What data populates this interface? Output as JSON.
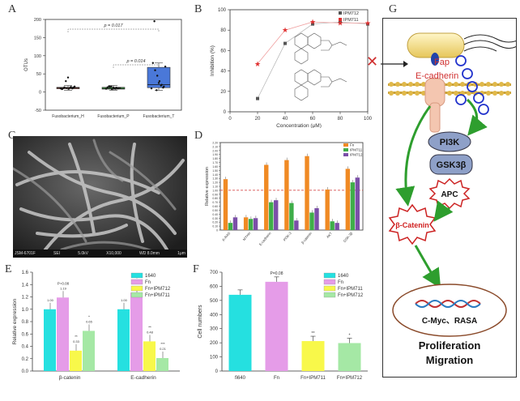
{
  "panels": {
    "a": {
      "letter": "A"
    },
    "b": {
      "letter": "B"
    },
    "c": {
      "letter": "C"
    },
    "d": {
      "letter": "D"
    },
    "e": {
      "letter": "E"
    },
    "f": {
      "letter": "F"
    },
    "g": {
      "letter": "G"
    }
  },
  "sem_info": [
    "JSM-6701F",
    "SEI",
    "5.0kV",
    "X10,000",
    "WD 8.0mm",
    "1μm"
  ],
  "pathway": {
    "fap": "Fap",
    "ecadherin": "E-cadherin",
    "pi3k": "PI3K",
    "gsk3b": "GSK3β",
    "apc": "APC",
    "bcatenin": "β-Catenin",
    "targets": "C-Myc、RASA",
    "outcome_line1": "Proliferation",
    "outcome_line2": "Migration",
    "block_mark": "✕"
  },
  "chart_data": [
    {
      "id": "a",
      "type": "box",
      "ylabel": "OTUs",
      "ylim": [
        -50,
        200
      ],
      "yticks": [
        -50,
        0,
        50,
        100,
        150,
        200
      ],
      "categories": [
        "Fusobacterium_H",
        "Fusobacterium_P",
        "Fusobacterium_T"
      ],
      "boxes": [
        {
          "min": 5,
          "q1": 9,
          "median": 11,
          "q3": 13,
          "max": 18,
          "color": "#e06a5a"
        },
        {
          "min": 5,
          "q1": 8,
          "median": 10,
          "q3": 13,
          "max": 18,
          "color": "#4caf50"
        },
        {
          "min": 5,
          "q1": 12,
          "median": 20,
          "q3": 68,
          "max": 80,
          "color": "#4a78d8"
        }
      ],
      "points": [
        [
          10,
          12,
          14,
          9,
          11,
          13,
          8,
          15,
          10,
          12,
          40,
          30,
          11,
          9,
          13
        ],
        [
          9,
          11,
          12,
          10,
          8,
          14,
          13,
          11,
          10,
          9,
          12,
          15,
          16
        ],
        [
          10,
          15,
          20,
          30,
          45,
          60,
          80,
          70,
          12,
          18,
          25,
          5,
          195
        ]
      ],
      "annotations": [
        "p = 0.017",
        "p = 0.014"
      ]
    },
    {
      "id": "b",
      "type": "line",
      "xlabel": "Concentration (μM)",
      "ylabel": "Inhibition (%)",
      "xlim": [
        0,
        100
      ],
      "ylim": [
        0,
        100
      ],
      "xticks": [
        0,
        20,
        40,
        60,
        80,
        100
      ],
      "yticks": [
        0,
        20,
        40,
        60,
        80,
        100
      ],
      "series": [
        {
          "name": "IPM712",
          "x": [
            20,
            40,
            60,
            80,
            100
          ],
          "y": [
            13,
            67,
            86,
            88,
            86
          ],
          "color": "#555555"
        },
        {
          "name": "IPM711",
          "x": [
            20,
            40,
            60,
            80,
            100
          ],
          "y": [
            47,
            80,
            88,
            87,
            87
          ],
          "color": "#e03030"
        }
      ]
    },
    {
      "id": "d",
      "type": "bar",
      "ylabel": "Relative expression",
      "ylim": [
        0,
        2.2
      ],
      "yticks": [
        "0",
        "0.10",
        "0.20",
        "0.30",
        "0.40",
        "0.50",
        "0.60",
        "0.70",
        "0.80",
        "0.90",
        "1.00",
        "1.10",
        "1.20",
        "1.30",
        "1.40",
        "1.50",
        "1.60",
        "1.70",
        "1.80",
        "1.90",
        "2.00",
        "2.10",
        "2.20"
      ],
      "categories": [
        "K-RAS",
        "MYHH",
        "E-cadherin",
        "PI3K-3",
        "β-catenin",
        "AKT",
        "GSK-3β"
      ],
      "series": [
        {
          "name": "Fn",
          "values": [
            1.28,
            0.32,
            1.64,
            1.76,
            1.86,
            1.02,
            1.54
          ],
          "color": "#f08a24"
        },
        {
          "name": "IPM711",
          "values": [
            0.18,
            0.28,
            0.7,
            0.68,
            0.44,
            0.22,
            1.2
          ],
          "color": "#3fae49"
        },
        {
          "name": "IPM712",
          "values": [
            0.32,
            0.3,
            0.75,
            0.24,
            0.55,
            0.18,
            1.32
          ],
          "color": "#7b4fa8"
        }
      ],
      "reference_line": 1.0
    },
    {
      "id": "e",
      "type": "bar",
      "ylabel": "Relative expression",
      "ylim": [
        0,
        1.6
      ],
      "yticks": [
        "0.0",
        "0.2",
        "0.4",
        "0.6",
        "0.8",
        "1.0",
        "1.2",
        "1.4",
        "1.6"
      ],
      "categories": [
        "β-catenin",
        "E-cadherin"
      ],
      "series": [
        {
          "name": "1640",
          "values": [
            1.0,
            1.0
          ],
          "color": "#25e0e0"
        },
        {
          "name": "Fn",
          "values": [
            1.19,
            1.27
          ],
          "color": "#e59ce8"
        },
        {
          "name": "Fn+IPM712",
          "values": [
            0.33,
            0.48
          ],
          "color": "#f8f84a"
        },
        {
          "name": "Fn+IPM711",
          "values": [
            0.65,
            0.21
          ],
          "color": "#a5e8a5"
        }
      ],
      "data_labels": [
        [
          "1.00",
          "1.19",
          "0.33",
          "0.65"
        ],
        [
          "1.00",
          "1.27",
          "0.48",
          "0.21"
        ]
      ],
      "annotations": [
        "P=0.08",
        "*",
        "**",
        "*",
        "**",
        "***"
      ]
    },
    {
      "id": "f",
      "type": "bar",
      "ylabel": "Cell numbers",
      "ylim": [
        0,
        700
      ],
      "yticks": [
        0,
        100,
        200,
        300,
        400,
        500,
        600,
        700
      ],
      "categories": [
        "fi640",
        "Fn",
        "Fn+IPM711",
        "Fn+IPM712"
      ],
      "values": [
        540,
        632,
        212,
        198
      ],
      "colors": [
        "#25e0e0",
        "#e59ce8",
        "#f8f84a",
        "#a5e8a5"
      ],
      "series_names": [
        "1640",
        "Fn",
        "Fn+IPM711",
        "Fn+IPM712"
      ],
      "annotations": [
        "P=0.08",
        "**",
        "*"
      ]
    }
  ]
}
